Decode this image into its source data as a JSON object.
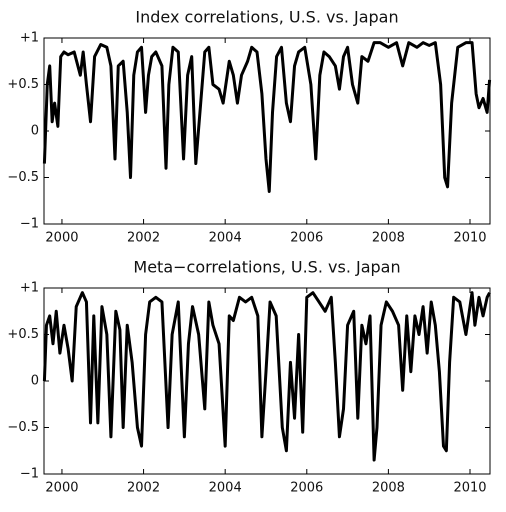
{
  "chart_data": [
    {
      "type": "line",
      "title": "Index correlations, U.S. vs. Japan",
      "x": [
        1999.57,
        1999.64,
        1999.7,
        1999.76,
        1999.82,
        1999.9,
        1999.97,
        2000.05,
        2000.15,
        2000.3,
        2000.45,
        2000.52,
        2000.6,
        2000.7,
        2000.8,
        2000.95,
        2001.1,
        2001.2,
        2001.3,
        2001.38,
        2001.5,
        2001.6,
        2001.68,
        2001.76,
        2001.85,
        2001.95,
        2002.05,
        2002.12,
        2002.2,
        2002.3,
        2002.45,
        2002.55,
        2002.62,
        2002.72,
        2002.85,
        2002.98,
        2003.08,
        2003.18,
        2003.28,
        2003.4,
        2003.5,
        2003.6,
        2003.7,
        2003.85,
        2003.95,
        2004.1,
        2004.2,
        2004.3,
        2004.4,
        2004.55,
        2004.65,
        2004.78,
        2004.9,
        2005.0,
        2005.08,
        2005.16,
        2005.26,
        2005.38,
        2005.5,
        2005.6,
        2005.7,
        2005.8,
        2005.95,
        2006.1,
        2006.22,
        2006.32,
        2006.42,
        2006.55,
        2006.7,
        2006.8,
        2006.9,
        2007.0,
        2007.12,
        2007.25,
        2007.35,
        2007.5,
        2007.65,
        2007.8,
        2008.0,
        2008.2,
        2008.35,
        2008.5,
        2008.7,
        2008.85,
        2009.0,
        2009.15,
        2009.28,
        2009.38,
        2009.45,
        2009.55,
        2009.7,
        2009.9,
        2010.05,
        2010.15,
        2010.22,
        2010.32,
        2010.42,
        2010.48
      ],
      "series": [
        {
          "name": "Index correlations",
          "color": "#000000",
          "values": [
            -0.35,
            0.5,
            0.7,
            0.1,
            0.3,
            0.05,
            0.8,
            0.85,
            0.82,
            0.85,
            0.6,
            0.85,
            0.5,
            0.1,
            0.8,
            0.93,
            0.9,
            0.7,
            -0.3,
            0.7,
            0.75,
            0.2,
            -0.5,
            0.6,
            0.85,
            0.9,
            0.2,
            0.6,
            0.8,
            0.85,
            0.7,
            -0.4,
            0.5,
            0.9,
            0.85,
            -0.3,
            0.6,
            0.8,
            -0.35,
            0.3,
            0.85,
            0.9,
            0.5,
            0.45,
            0.3,
            0.75,
            0.6,
            0.3,
            0.6,
            0.75,
            0.9,
            0.85,
            0.4,
            -0.3,
            -0.65,
            0.2,
            0.8,
            0.9,
            0.3,
            0.1,
            0.7,
            0.85,
            0.9,
            0.5,
            -0.3,
            0.6,
            0.85,
            0.8,
            0.7,
            0.45,
            0.8,
            0.9,
            0.5,
            0.3,
            0.8,
            0.75,
            0.95,
            0.95,
            0.9,
            0.95,
            0.7,
            0.95,
            0.9,
            0.95,
            0.92,
            0.95,
            0.5,
            -0.5,
            -0.6,
            0.3,
            0.9,
            0.95,
            0.95,
            0.4,
            0.25,
            0.35,
            0.2,
            0.55
          ]
        }
      ],
      "xlim": [
        1999.56,
        2010.49
      ],
      "ylim": [
        -1,
        1
      ],
      "xticks": [
        2000,
        2002,
        2004,
        2006,
        2008,
        2010
      ],
      "yticks": [
        {
          "value": -1,
          "label": "−1"
        },
        {
          "value": -0.5,
          "label": "−0.5"
        },
        0,
        {
          "value": 0.5,
          "label": "+0.5"
        },
        {
          "value": 1,
          "label": "+1"
        }
      ]
    },
    {
      "type": "line",
      "title": "Meta−correlations, U.S. vs. Japan",
      "x": [
        1999.57,
        1999.62,
        1999.7,
        1999.78,
        1999.86,
        1999.95,
        2000.05,
        2000.15,
        2000.25,
        2000.35,
        2000.5,
        2000.6,
        2000.7,
        2000.78,
        2000.88,
        2000.98,
        2001.1,
        2001.2,
        2001.32,
        2001.42,
        2001.5,
        2001.6,
        2001.72,
        2001.85,
        2001.95,
        2002.05,
        2002.15,
        2002.3,
        2002.45,
        2002.6,
        2002.7,
        2002.85,
        2003.0,
        2003.1,
        2003.2,
        2003.35,
        2003.5,
        2003.6,
        2003.7,
        2003.85,
        2004.0,
        2004.1,
        2004.2,
        2004.35,
        2004.5,
        2004.65,
        2004.8,
        2004.9,
        2005.0,
        2005.1,
        2005.25,
        2005.4,
        2005.5,
        2005.6,
        2005.7,
        2005.8,
        2005.9,
        2006.0,
        2006.15,
        2006.3,
        2006.45,
        2006.6,
        2006.7,
        2006.8,
        2006.9,
        2007.0,
        2007.15,
        2007.25,
        2007.35,
        2007.45,
        2007.55,
        2007.65,
        2007.72,
        2007.82,
        2007.95,
        2008.1,
        2008.25,
        2008.35,
        2008.45,
        2008.55,
        2008.65,
        2008.75,
        2008.85,
        2008.95,
        2009.05,
        2009.15,
        2009.25,
        2009.35,
        2009.42,
        2009.5,
        2009.6,
        2009.75,
        2009.9,
        2010.05,
        2010.12,
        2010.22,
        2010.32,
        2010.42,
        2010.48
      ],
      "series": [
        {
          "name": "Meta-correlations",
          "color": "#000000",
          "values": [
            0,
            0.6,
            0.7,
            0.4,
            0.75,
            0.3,
            0.6,
            0.35,
            0,
            0.8,
            0.95,
            0.85,
            -0.45,
            0.7,
            -0.45,
            0.8,
            0.5,
            -0.6,
            0.75,
            0.55,
            -0.5,
            0.6,
            0.2,
            -0.5,
            -0.7,
            0.5,
            0.85,
            0.9,
            0.85,
            -0.5,
            0.5,
            0.85,
            -0.6,
            0.4,
            0.8,
            0.5,
            -0.3,
            0.85,
            0.6,
            0.4,
            -0.7,
            0.7,
            0.65,
            0.9,
            0.85,
            0.9,
            0.7,
            -0.6,
            0.1,
            0.85,
            0.7,
            -0.5,
            -0.75,
            0.2,
            -0.4,
            0.5,
            -0.55,
            0.9,
            0.95,
            0.85,
            0.75,
            0.9,
            0.2,
            -0.6,
            -0.3,
            0.6,
            0.75,
            -0.4,
            0.6,
            0.4,
            0.7,
            -0.85,
            -0.5,
            0.6,
            0.85,
            0.75,
            0.6,
            -0.1,
            0.7,
            0.1,
            0.7,
            0.5,
            0.8,
            0.3,
            0.85,
            0.6,
            0.1,
            -0.7,
            -0.75,
            0.2,
            0.9,
            0.85,
            0.5,
            0.95,
            0.6,
            0.9,
            0.7,
            0.9,
            0.95
          ]
        }
      ],
      "xlim": [
        1999.56,
        2010.49
      ],
      "ylim": [
        -1,
        1
      ],
      "xticks": [
        2000,
        2002,
        2004,
        2006,
        2008,
        2010
      ],
      "yticks": [
        {
          "value": -1,
          "label": "−1"
        },
        {
          "value": -0.5,
          "label": "−0.5"
        },
        0,
        {
          "value": 0.5,
          "label": "+0.5"
        },
        {
          "value": 1,
          "label": "+1"
        }
      ]
    }
  ]
}
